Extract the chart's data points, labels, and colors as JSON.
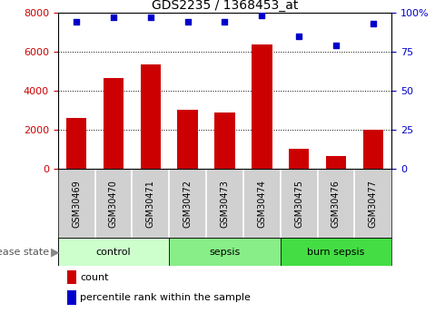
{
  "title": "GDS2235 / 1368453_at",
  "samples": [
    "GSM30469",
    "GSM30470",
    "GSM30471",
    "GSM30472",
    "GSM30473",
    "GSM30474",
    "GSM30475",
    "GSM30476",
    "GSM30477"
  ],
  "counts": [
    2600,
    4650,
    5350,
    3050,
    2900,
    6350,
    1050,
    650,
    2000
  ],
  "percentile_ranks": [
    94,
    97,
    97,
    94,
    94,
    98,
    85,
    79,
    93
  ],
  "bar_color": "#cc0000",
  "dot_color": "#0000cc",
  "left_ylim": [
    0,
    8000
  ],
  "right_ylim": [
    0,
    100
  ],
  "left_yticks": [
    0,
    2000,
    4000,
    6000,
    8000
  ],
  "right_yticks": [
    0,
    25,
    50,
    75,
    100
  ],
  "right_yticklabels": [
    "0",
    "25",
    "50",
    "75",
    "100%"
  ],
  "groups": [
    {
      "label": "control",
      "start": 0,
      "end": 3,
      "color": "#ccffcc"
    },
    {
      "label": "sepsis",
      "start": 3,
      "end": 6,
      "color": "#88ee88"
    },
    {
      "label": "burn sepsis",
      "start": 6,
      "end": 9,
      "color": "#44dd44"
    }
  ],
  "disease_state_label": "disease state",
  "legend_count_label": "count",
  "legend_percentile_label": "percentile rank within the sample",
  "tick_label_color_left": "#cc0000",
  "tick_label_color_right": "#0000cc",
  "bg_color_samples": "#d0d0d0",
  "bg_color_white": "#ffffff"
}
